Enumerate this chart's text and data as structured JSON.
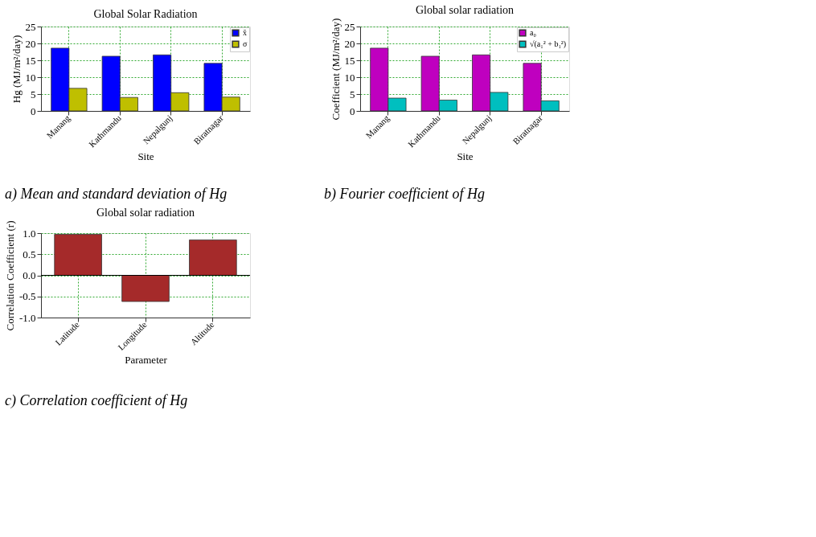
{
  "chart_data": [
    {
      "type": "bar",
      "title": "Global Solar Radiation",
      "xlabel": "Site",
      "ylabel": "Hg (MJ/m²/day)",
      "categories": [
        "Manang",
        "Kathmandu",
        "Nepalgunj",
        "Biratnagar"
      ],
      "series": [
        {
          "name": "x̄",
          "color": "#0000ff",
          "values": [
            18.6,
            16.2,
            16.6,
            14.1
          ]
        },
        {
          "name": "σ",
          "color": "#bfbf00",
          "values": [
            6.7,
            4.0,
            5.4,
            4.1
          ]
        }
      ],
      "ylim": [
        0,
        25
      ],
      "yticks": [
        0,
        5,
        10,
        15,
        20,
        25
      ],
      "grid": true,
      "legend": "top right",
      "annotations": [
        "a)  Mean and standard deviation of  Hg"
      ]
    },
    {
      "type": "bar",
      "title": "Global solar radiation",
      "xlabel": "Site",
      "ylabel": "Coefficient (MJ/m²/day)",
      "categories": [
        "Manang",
        "Kathmandu",
        "Nepalgunj",
        "Biratnagar"
      ],
      "series": [
        {
          "name": "a₀",
          "color": "#bf00bf",
          "values": [
            18.6,
            16.2,
            16.6,
            14.1
          ]
        },
        {
          "name": "√(a₁² + b₁²)",
          "color": "#00bfbf",
          "values": [
            3.8,
            3.2,
            5.5,
            3.0
          ]
        }
      ],
      "ylim": [
        0,
        25
      ],
      "yticks": [
        0,
        5,
        10,
        15,
        20,
        25
      ],
      "grid": true,
      "legend": "top right",
      "annotations": [
        "b) Fourier coefficient of Hg"
      ]
    },
    {
      "type": "bar",
      "title": "Global solar radiation",
      "xlabel": "Parameter",
      "ylabel": "Correlation Coefficient (r)",
      "categories": [
        "Latitude",
        "Longitude",
        "Altitude"
      ],
      "series": [
        {
          "color": "#a52a2a",
          "values": [
            0.97,
            -0.62,
            0.84
          ]
        }
      ],
      "ylim": [
        -1.0,
        1.0
      ],
      "yticks": [
        {
          "value": -1.0,
          "label": "-1.0"
        },
        {
          "value": -0.5,
          "label": "-0.5"
        },
        {
          "value": 0.0,
          "label": "0.0"
        },
        {
          "value": 0.5,
          "label": "0.5"
        },
        {
          "value": 1.0,
          "label": "1.0"
        }
      ],
      "grid": true,
      "ref_lines": [
        {
          "axis": "y",
          "value": 0,
          "color": "#000000"
        }
      ],
      "annotations": [
        "c) Correlation coefficient of Hg"
      ]
    }
  ]
}
